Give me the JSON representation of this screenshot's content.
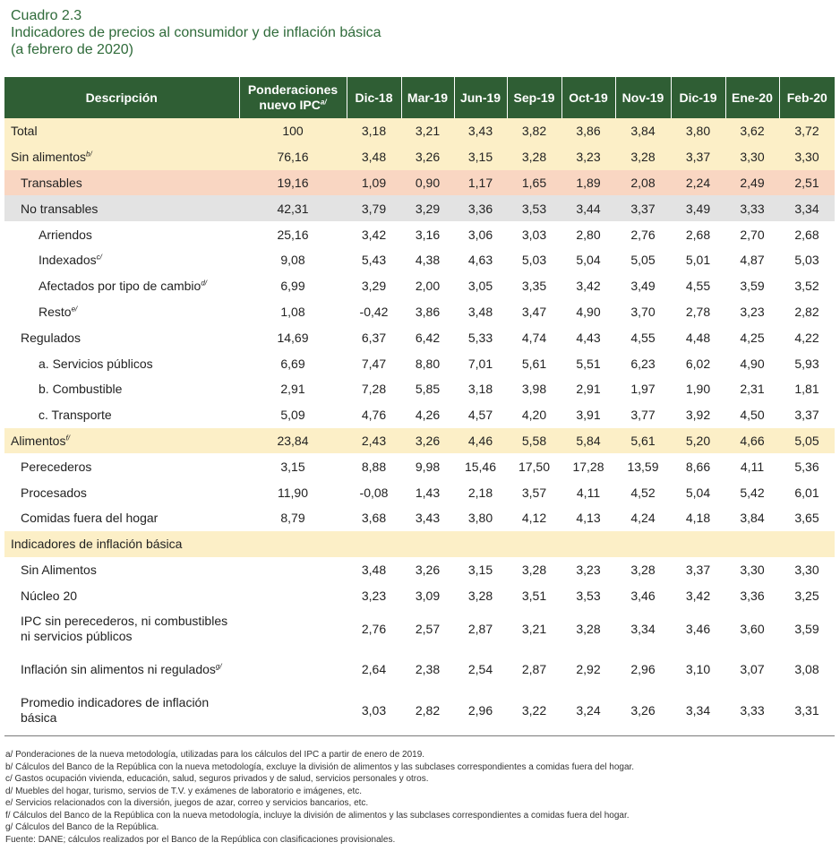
{
  "title": {
    "line1": "Cuadro 2.3",
    "line2": "Indicadores de precios al consumidor y de inflación básica",
    "line3": "(a febrero de 2020)"
  },
  "header": {
    "descripcion": "Descripción",
    "ponderaciones_line1": "Ponderaciones",
    "ponderaciones_line2": "nuevo IPC",
    "ponderaciones_sup": "a/",
    "periods": [
      "Dic-18",
      "Mar-19",
      "Jun-19",
      "Sep-19",
      "Oct-19",
      "Nov-19",
      "Dic-19",
      "Ene-20",
      "Feb-20"
    ]
  },
  "rows": [
    {
      "label": "Total",
      "sup": "",
      "weight": "100",
      "values": [
        "3,18",
        "3,21",
        "3,43",
        "3,82",
        "3,86",
        "3,84",
        "3,80",
        "3,62",
        "3,72"
      ],
      "level": 0,
      "bg": "yellow"
    },
    {
      "label": "Sin alimentos",
      "sup": "b/",
      "weight": "76,16",
      "values": [
        "3,48",
        "3,26",
        "3,15",
        "3,28",
        "3,23",
        "3,28",
        "3,37",
        "3,30",
        "3,30"
      ],
      "level": 0,
      "bg": "yellow"
    },
    {
      "label": "Transables",
      "sup": "",
      "weight": "19,16",
      "values": [
        "1,09",
        "0,90",
        "1,17",
        "1,65",
        "1,89",
        "2,08",
        "2,24",
        "2,49",
        "2,51"
      ],
      "level": 1,
      "bg": "orange"
    },
    {
      "label": "No transables",
      "sup": "",
      "weight": "42,31",
      "values": [
        "3,79",
        "3,29",
        "3,36",
        "3,53",
        "3,44",
        "3,37",
        "3,49",
        "3,33",
        "3,34"
      ],
      "level": 1,
      "bg": "grey"
    },
    {
      "label": "Arriendos",
      "sup": "",
      "weight": "25,16",
      "values": [
        "3,42",
        "3,16",
        "3,06",
        "3,03",
        "2,80",
        "2,76",
        "2,68",
        "2,70",
        "2,68"
      ],
      "level": 2,
      "bg": ""
    },
    {
      "label": "Indexados",
      "sup": "c/",
      "weight": "9,08",
      "values": [
        "5,43",
        "4,38",
        "4,63",
        "5,03",
        "5,04",
        "5,05",
        "5,01",
        "4,87",
        "5,03"
      ],
      "level": 2,
      "bg": ""
    },
    {
      "label": "Afectados por tipo de cambio",
      "sup": "d/",
      "weight": "6,99",
      "values": [
        "3,29",
        "2,00",
        "3,05",
        "3,35",
        "3,42",
        "3,49",
        "4,55",
        "3,59",
        "3,52"
      ],
      "level": 2,
      "bg": ""
    },
    {
      "label": "Resto",
      "sup": "e/",
      "weight": "1,08",
      "values": [
        "-0,42",
        "3,86",
        "3,48",
        "3,47",
        "4,90",
        "3,70",
        "2,78",
        "3,23",
        "2,82"
      ],
      "level": 2,
      "bg": ""
    },
    {
      "label": "Regulados",
      "sup": "",
      "weight": "14,69",
      "values": [
        "6,37",
        "6,42",
        "5,33",
        "4,74",
        "4,43",
        "4,55",
        "4,48",
        "4,25",
        "4,22"
      ],
      "level": 1,
      "bg": ""
    },
    {
      "label": "a. Servicios públicos",
      "sup": "",
      "weight": "6,69",
      "values": [
        "7,47",
        "8,80",
        "7,01",
        "5,61",
        "5,51",
        "6,23",
        "6,02",
        "4,90",
        "5,93"
      ],
      "level": 2,
      "bg": ""
    },
    {
      "label": "b. Combustible",
      "sup": "",
      "weight": "2,91",
      "values": [
        "7,28",
        "5,85",
        "3,18",
        "3,98",
        "2,91",
        "1,97",
        "1,90",
        "2,31",
        "1,81"
      ],
      "level": 2,
      "bg": ""
    },
    {
      "label": "c. Transporte",
      "sup": "",
      "weight": "5,09",
      "values": [
        "4,76",
        "4,26",
        "4,57",
        "4,20",
        "3,91",
        "3,77",
        "3,92",
        "4,50",
        "3,37"
      ],
      "level": 2,
      "bg": ""
    },
    {
      "label": "Alimentos",
      "sup": "f/",
      "weight": "23,84",
      "values": [
        "2,43",
        "3,26",
        "4,46",
        "5,58",
        "5,84",
        "5,61",
        "5,20",
        "4,66",
        "5,05"
      ],
      "level": 0,
      "bg": "yellow"
    },
    {
      "label": "Perecederos",
      "sup": "",
      "weight": "3,15",
      "values": [
        "8,88",
        "9,98",
        "15,46",
        "17,50",
        "17,28",
        "13,59",
        "8,66",
        "4,11",
        "5,36"
      ],
      "level": 1,
      "bg": ""
    },
    {
      "label": "Procesados",
      "sup": "",
      "weight": "11,90",
      "values": [
        "-0,08",
        "1,43",
        "2,18",
        "3,57",
        "4,11",
        "4,52",
        "5,04",
        "5,42",
        "6,01"
      ],
      "level": 1,
      "bg": ""
    },
    {
      "label": "Comidas fuera del hogar",
      "sup": "",
      "weight": "8,79",
      "values": [
        "3,68",
        "3,43",
        "3,80",
        "4,12",
        "4,13",
        "4,24",
        "4,18",
        "3,84",
        "3,65"
      ],
      "level": 1,
      "bg": ""
    },
    {
      "label": "Indicadores de inflación básica",
      "sup": "",
      "weight": "",
      "values": [
        "",
        "",
        "",
        "",
        "",
        "",
        "",
        "",
        ""
      ],
      "level": 0,
      "bg": "yellow"
    },
    {
      "label": "Sin Alimentos",
      "sup": "",
      "weight": "",
      "values": [
        "3,48",
        "3,26",
        "3,15",
        "3,28",
        "3,23",
        "3,28",
        "3,37",
        "3,30",
        "3,30"
      ],
      "level": 1,
      "bg": ""
    },
    {
      "label": "Núcleo 20",
      "sup": "",
      "weight": "",
      "values": [
        "3,23",
        "3,09",
        "3,28",
        "3,51",
        "3,53",
        "3,46",
        "3,42",
        "3,36",
        "3,25"
      ],
      "level": 1,
      "bg": ""
    },
    {
      "label": "IPC sin perecederos, ni combustibles ni servicios públicos",
      "sup": "",
      "weight": "",
      "values": [
        "2,76",
        "2,57",
        "2,87",
        "3,21",
        "3,28",
        "3,34",
        "3,46",
        "3,60",
        "3,59"
      ],
      "level": 1,
      "bg": "",
      "tall": true
    },
    {
      "label": "Inflación sin alimentos ni regulados",
      "sup": "g/",
      "weight": "",
      "values": [
        "2,64",
        "2,38",
        "2,54",
        "2,87",
        "2,92",
        "2,96",
        "3,10",
        "3,07",
        "3,08"
      ],
      "level": 1,
      "bg": "",
      "tall": true
    },
    {
      "label": "Promedio indicadores de inflación básica",
      "sup": "",
      "weight": "",
      "values": [
        "3,03",
        "2,82",
        "2,96",
        "3,22",
        "3,24",
        "3,26",
        "3,34",
        "3,33",
        "3,31"
      ],
      "level": 1,
      "bg": "",
      "tall": true
    }
  ],
  "notes": [
    "a/ Ponderaciones de la nueva metodología, utilizadas para los cálculos del IPC a partir de enero de 2019.",
    "b/ Cálculos del Banco de la República con la nueva metodología, excluye la división de alimentos y las subclases correspondientes a comidas fuera del hogar.",
    "c/ Gastos ocupación vivienda, educación, salud, seguros privados y de salud, servicios personales y otros.",
    "d/ Muebles del hogar, turismo, servios de T.V. y exámenes de laboratorio e imágenes, etc.",
    "e/ Servicios relacionados con la diversión, juegos de azar, correo y servicios bancarios, etc.",
    "f/ Cálculos del Banco de la República con la nueva metodología, incluye la división de alimentos y las subclases correspondientes a comidas fuera del hogar.",
    "g/ Cálculos del Banco de la República.",
    "Fuente: DANE; cálculos realizados por el Banco de la República con clasificaciones provisionales."
  ],
  "colors": {
    "header_bg": "#2f5e34",
    "title_text": "#2f6b3a",
    "row_yellow": "#fcefc7",
    "row_orange": "#f9d6c2",
    "row_grey": "#e3e3e3"
  }
}
